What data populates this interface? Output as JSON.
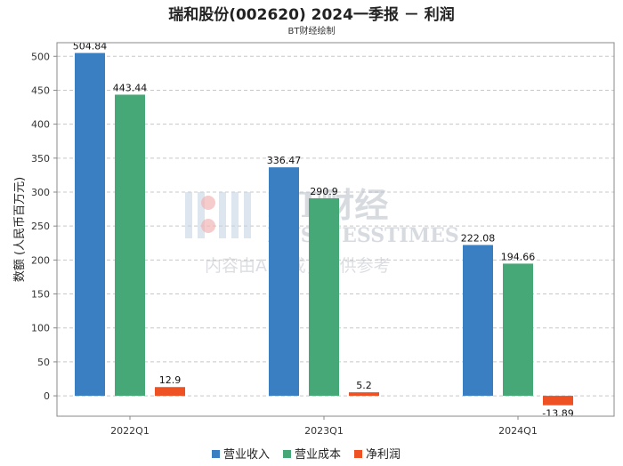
{
  "chart_data": {
    "type": "bar",
    "title": "瑞和股份(002620) 2024一季报 － 利润",
    "subtitle": "BT财经绘制",
    "xlabel": "",
    "ylabel": "数额 (人民币百万元)",
    "ylim": [
      -30,
      520
    ],
    "yticks": [
      0,
      50,
      100,
      150,
      200,
      250,
      300,
      350,
      400,
      450,
      500
    ],
    "grid": true,
    "legend_position": "bottom",
    "categories": [
      "2022Q1",
      "2023Q1",
      "2024Q1"
    ],
    "series": [
      {
        "name": "营业收入",
        "color": "#3a7fc1",
        "values": [
          504.84,
          336.47,
          222.08
        ],
        "labels": [
          "504.84",
          "336.47",
          "222.08"
        ]
      },
      {
        "name": "营业成本",
        "color": "#46a876",
        "values": [
          443.44,
          290.9,
          194.66
        ],
        "labels": [
          "443.44",
          "290.9",
          "194.66"
        ]
      },
      {
        "name": "净利润",
        "color": "#ee5124",
        "values": [
          12.9,
          5.2,
          -13.89
        ],
        "labels": [
          "12.9",
          "5.2",
          "-13.89"
        ]
      }
    ]
  },
  "watermark": {
    "brand_cn": "BT财经",
    "brand_en": "BUSINESSTIMES",
    "notice": "内容由AI生成，仅供参考"
  }
}
